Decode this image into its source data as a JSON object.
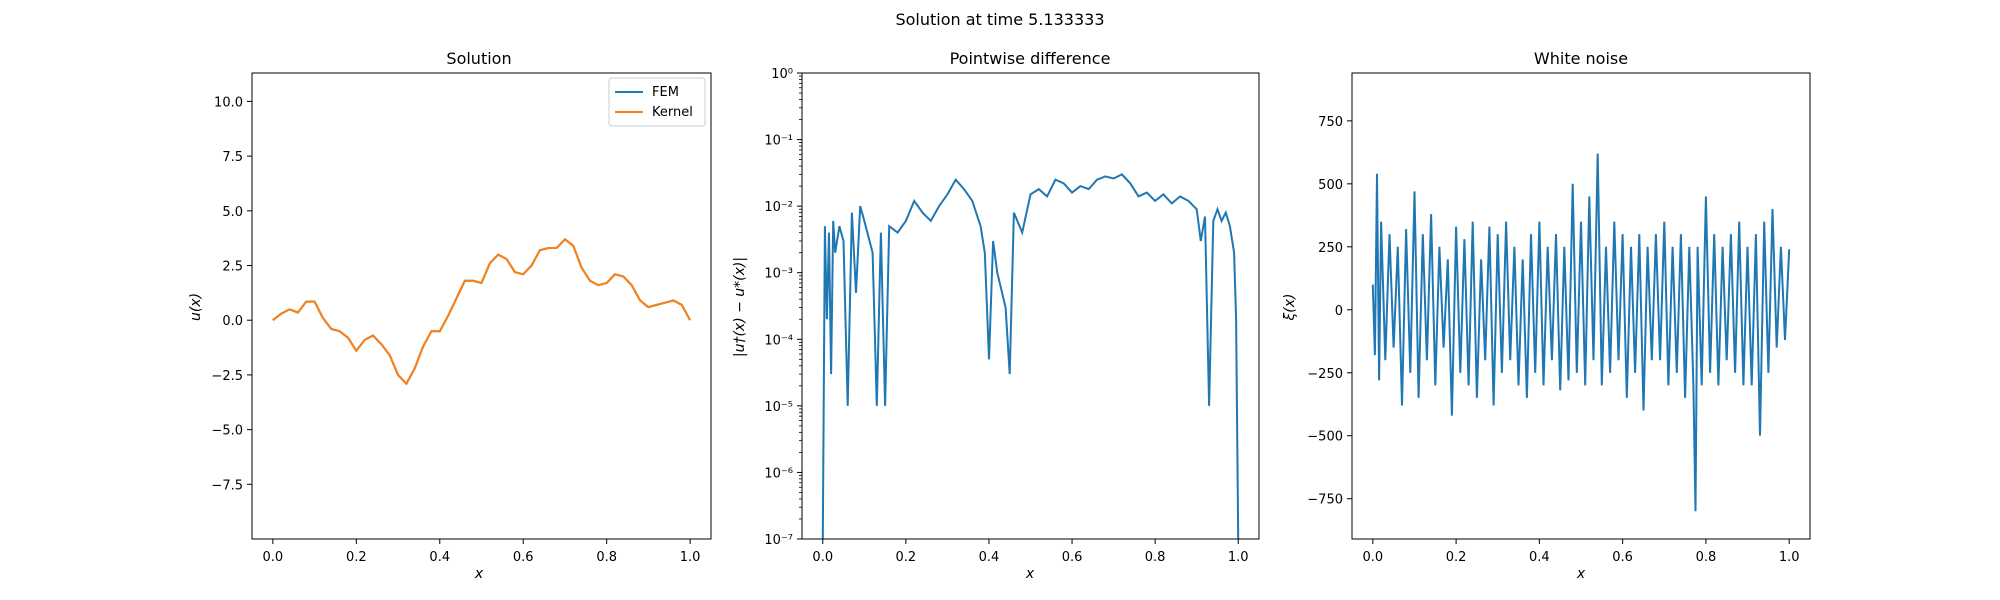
{
  "figure": {
    "suptitle": "Solution at time 5.133333"
  },
  "colors": {
    "fem": "#1f77b4",
    "kernel": "#ff7f0e",
    "series": "#1f77b4"
  },
  "panels": [
    {
      "title": "Solution",
      "xlabel": "x",
      "ylabel": "u(x)",
      "legend": [
        "FEM",
        "Kernel"
      ],
      "legend_position": "top-right",
      "xticks": [
        "0.0",
        "0.2",
        "0.4",
        "0.6",
        "0.8",
        "1.0"
      ],
      "yticks": [
        "10.0",
        "7.5",
        "5.0",
        "2.5",
        "0.0",
        "−2.5",
        "−5.0",
        "−7.5"
      ]
    },
    {
      "title": "Pointwise difference",
      "xlabel": "x",
      "ylabel": "|u†(x) − u*(x)|",
      "xticks": [
        "0.0",
        "0.2",
        "0.4",
        "0.6",
        "0.8",
        "1.0"
      ],
      "yticks": [
        "10⁰",
        "10⁻¹",
        "10⁻²",
        "10⁻³",
        "10⁻⁴",
        "10⁻⁵",
        "10⁻⁶",
        "10⁻⁷"
      ]
    },
    {
      "title": "White noise",
      "xlabel": "x",
      "ylabel": "ξ(x)",
      "xticks": [
        "0.0",
        "0.2",
        "0.4",
        "0.6",
        "0.8",
        "1.0"
      ],
      "yticks": [
        "750",
        "500",
        "250",
        "0",
        "−250",
        "−500",
        "−750"
      ]
    }
  ],
  "chart_data": [
    {
      "type": "line",
      "title": "Solution",
      "xlabel": "x",
      "ylabel": "u(x)",
      "xlim": [
        -0.05,
        1.05
      ],
      "ylim": [
        -10,
        11.3
      ],
      "series": [
        {
          "name": "FEM",
          "x": [
            0.0,
            0.02,
            0.04,
            0.06,
            0.08,
            0.1,
            0.12,
            0.14,
            0.16,
            0.18,
            0.2,
            0.22,
            0.24,
            0.26,
            0.28,
            0.3,
            0.32,
            0.34,
            0.36,
            0.38,
            0.4,
            0.42,
            0.44,
            0.46,
            0.48,
            0.5,
            0.52,
            0.54,
            0.56,
            0.58,
            0.6,
            0.62,
            0.64,
            0.66,
            0.68,
            0.7,
            0.72,
            0.74,
            0.76,
            0.78,
            0.8,
            0.82,
            0.84,
            0.86,
            0.88,
            0.9,
            0.92,
            0.94,
            0.96,
            0.98,
            1.0
          ],
          "y": [
            0.0,
            0.3,
            0.5,
            0.35,
            0.85,
            0.85,
            0.1,
            -0.4,
            -0.5,
            -0.8,
            -1.4,
            -0.9,
            -0.7,
            -1.1,
            -1.6,
            -2.5,
            -2.9,
            -2.2,
            -1.2,
            -0.5,
            -0.5,
            0.2,
            1.0,
            1.8,
            1.8,
            1.7,
            2.6,
            3.0,
            2.8,
            2.2,
            2.1,
            2.5,
            3.2,
            3.3,
            3.3,
            3.7,
            3.4,
            2.4,
            1.8,
            1.6,
            1.7,
            2.1,
            2.0,
            1.6,
            0.9,
            0.6,
            0.7,
            0.8,
            0.9,
            0.7,
            0.0
          ]
        },
        {
          "name": "Kernel",
          "x": [
            0.0,
            0.02,
            0.04,
            0.06,
            0.08,
            0.1,
            0.12,
            0.14,
            0.16,
            0.18,
            0.2,
            0.22,
            0.24,
            0.26,
            0.28,
            0.3,
            0.32,
            0.34,
            0.36,
            0.38,
            0.4,
            0.42,
            0.44,
            0.46,
            0.48,
            0.5,
            0.52,
            0.54,
            0.56,
            0.58,
            0.6,
            0.62,
            0.64,
            0.66,
            0.68,
            0.7,
            0.72,
            0.74,
            0.76,
            0.78,
            0.8,
            0.82,
            0.84,
            0.86,
            0.88,
            0.9,
            0.92,
            0.94,
            0.96,
            0.98,
            1.0
          ],
          "y": [
            0.0,
            0.3,
            0.5,
            0.35,
            0.85,
            0.85,
            0.1,
            -0.4,
            -0.5,
            -0.8,
            -1.4,
            -0.9,
            -0.7,
            -1.1,
            -1.6,
            -2.5,
            -2.9,
            -2.2,
            -1.2,
            -0.5,
            -0.5,
            0.2,
            1.0,
            1.8,
            1.8,
            1.7,
            2.6,
            3.0,
            2.8,
            2.2,
            2.1,
            2.5,
            3.2,
            3.3,
            3.3,
            3.7,
            3.4,
            2.4,
            1.8,
            1.6,
            1.7,
            2.1,
            2.0,
            1.6,
            0.9,
            0.6,
            0.7,
            0.8,
            0.9,
            0.7,
            0.0
          ]
        }
      ]
    },
    {
      "type": "line",
      "title": "Pointwise difference",
      "xlabel": "x",
      "ylabel": "|u†(x) − u*(x)|",
      "yscale": "log",
      "xlim": [
        -0.05,
        1.05
      ],
      "ylim": [
        1e-07,
        1
      ],
      "series": [
        {
          "x": [
            0.0,
            0.005,
            0.01,
            0.015,
            0.02,
            0.025,
            0.03,
            0.04,
            0.05,
            0.06,
            0.07,
            0.08,
            0.09,
            0.1,
            0.12,
            0.13,
            0.14,
            0.15,
            0.16,
            0.18,
            0.2,
            0.22,
            0.24,
            0.26,
            0.28,
            0.3,
            0.32,
            0.34,
            0.36,
            0.38,
            0.39,
            0.4,
            0.41,
            0.42,
            0.44,
            0.45,
            0.46,
            0.48,
            0.5,
            0.52,
            0.54,
            0.56,
            0.58,
            0.6,
            0.62,
            0.64,
            0.66,
            0.68,
            0.7,
            0.72,
            0.74,
            0.76,
            0.78,
            0.8,
            0.82,
            0.84,
            0.86,
            0.88,
            0.9,
            0.91,
            0.92,
            0.93,
            0.94,
            0.95,
            0.96,
            0.97,
            0.98,
            0.99,
            0.995,
            1.0
          ],
          "y": [
            1e-07,
            0.005,
            0.0002,
            0.004,
            3e-05,
            0.006,
            0.002,
            0.005,
            0.003,
            1e-05,
            0.008,
            0.0005,
            0.01,
            0.006,
            0.002,
            1e-05,
            0.004,
            1e-05,
            0.005,
            0.004,
            0.006,
            0.012,
            0.008,
            0.006,
            0.01,
            0.015,
            0.025,
            0.018,
            0.012,
            0.005,
            0.002,
            5e-05,
            0.003,
            0.001,
            0.0003,
            3e-05,
            0.008,
            0.004,
            0.015,
            0.018,
            0.014,
            0.025,
            0.022,
            0.016,
            0.02,
            0.018,
            0.025,
            0.028,
            0.026,
            0.03,
            0.022,
            0.014,
            0.016,
            0.012,
            0.015,
            0.011,
            0.014,
            0.012,
            0.009,
            0.003,
            0.007,
            1e-05,
            0.006,
            0.009,
            0.006,
            0.008,
            0.005,
            0.002,
            0.0002,
            1e-07
          ]
        }
      ]
    },
    {
      "type": "line",
      "title": "White noise",
      "xlabel": "x",
      "ylabel": "ξ(x)",
      "xlim": [
        -0.05,
        1.05
      ],
      "ylim": [
        -910,
        940
      ],
      "series": [
        {
          "x": [
            0.0,
            0.005,
            0.01,
            0.015,
            0.02,
            0.03,
            0.04,
            0.05,
            0.06,
            0.07,
            0.08,
            0.09,
            0.1,
            0.11,
            0.12,
            0.13,
            0.14,
            0.15,
            0.16,
            0.17,
            0.18,
            0.19,
            0.2,
            0.21,
            0.22,
            0.23,
            0.24,
            0.25,
            0.26,
            0.27,
            0.28,
            0.29,
            0.3,
            0.31,
            0.32,
            0.33,
            0.34,
            0.35,
            0.36,
            0.37,
            0.38,
            0.39,
            0.4,
            0.41,
            0.42,
            0.43,
            0.44,
            0.45,
            0.46,
            0.47,
            0.48,
            0.49,
            0.5,
            0.51,
            0.52,
            0.53,
            0.54,
            0.55,
            0.56,
            0.57,
            0.58,
            0.59,
            0.6,
            0.61,
            0.62,
            0.63,
            0.64,
            0.65,
            0.66,
            0.67,
            0.68,
            0.69,
            0.7,
            0.71,
            0.72,
            0.73,
            0.74,
            0.75,
            0.76,
            0.77,
            0.775,
            0.78,
            0.79,
            0.8,
            0.81,
            0.82,
            0.83,
            0.84,
            0.85,
            0.86,
            0.87,
            0.88,
            0.89,
            0.9,
            0.91,
            0.92,
            0.93,
            0.94,
            0.95,
            0.96,
            0.97,
            0.98,
            0.99,
            1.0
          ],
          "y": [
            100,
            -180,
            540,
            -280,
            350,
            -200,
            300,
            -150,
            250,
            -380,
            320,
            -250,
            470,
            -350,
            300,
            -200,
            380,
            -300,
            250,
            -150,
            200,
            -420,
            330,
            -250,
            280,
            -300,
            350,
            -350,
            200,
            -200,
            330,
            -380,
            300,
            -250,
            350,
            -200,
            250,
            -300,
            200,
            -350,
            300,
            -250,
            350,
            -300,
            250,
            -200,
            300,
            -320,
            250,
            -280,
            500,
            -250,
            350,
            -300,
            450,
            -200,
            620,
            -300,
            250,
            -250,
            350,
            -200,
            300,
            -350,
            250,
            -250,
            300,
            -400,
            250,
            -200,
            300,
            -200,
            350,
            -300,
            250,
            -250,
            300,
            -350,
            250,
            -300,
            -800,
            250,
            -300,
            450,
            -250,
            300,
            -300,
            250,
            -200,
            300,
            -250,
            350,
            -300,
            250,
            -300,
            300,
            -500,
            350,
            -250,
            400,
            -150,
            250,
            -120,
            240
          ]
        }
      ]
    }
  ]
}
